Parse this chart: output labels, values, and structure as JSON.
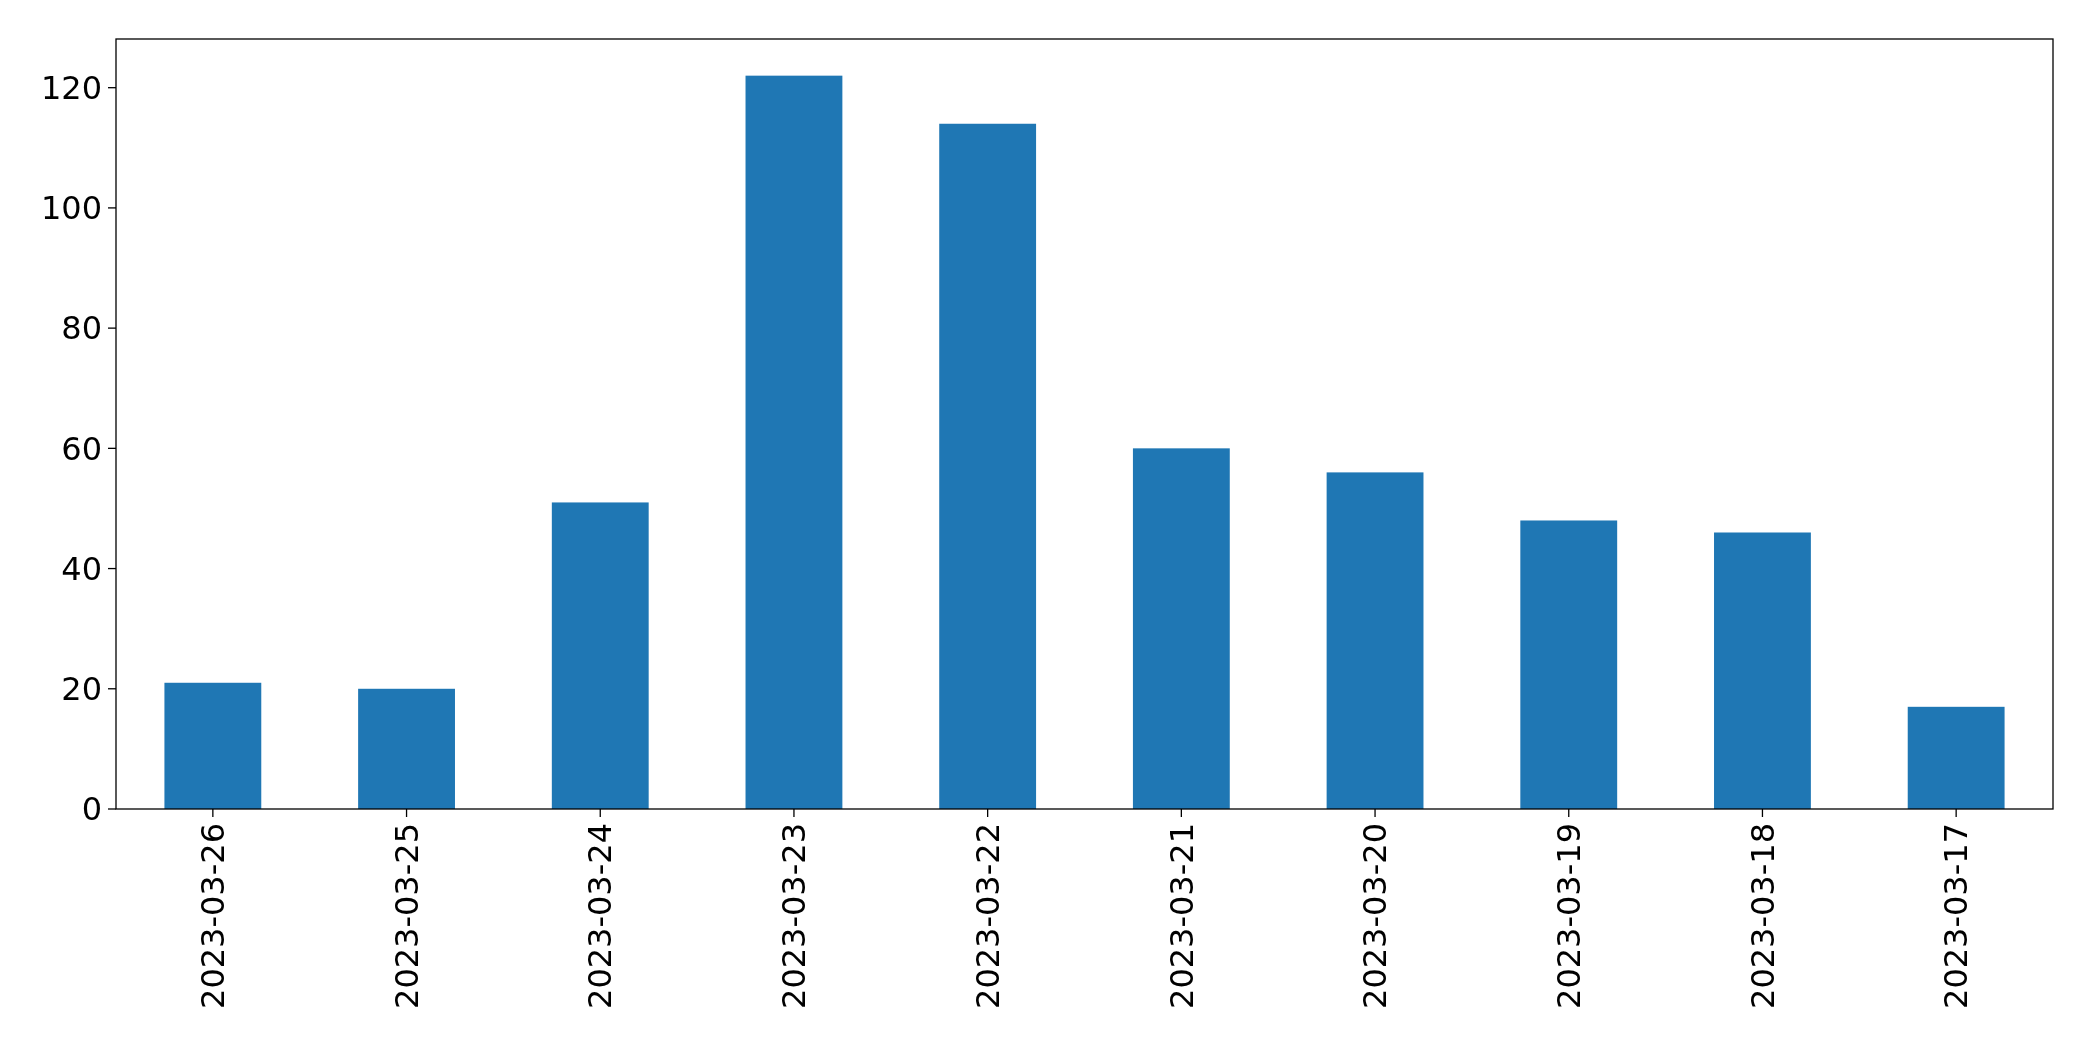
{
  "chart_data": {
    "type": "bar",
    "categories": [
      "2023-03-26",
      "2023-03-25",
      "2023-03-24",
      "2023-03-23",
      "2023-03-22",
      "2023-03-21",
      "2023-03-20",
      "2023-03-19",
      "2023-03-18",
      "2023-03-17"
    ],
    "values": [
      21,
      20,
      51,
      122,
      114,
      60,
      56,
      48,
      46,
      17
    ],
    "color": "#1f77b4",
    "ylim": [
      0,
      128.1
    ],
    "yticks": [
      0,
      20,
      40,
      60,
      80,
      100,
      120
    ]
  }
}
